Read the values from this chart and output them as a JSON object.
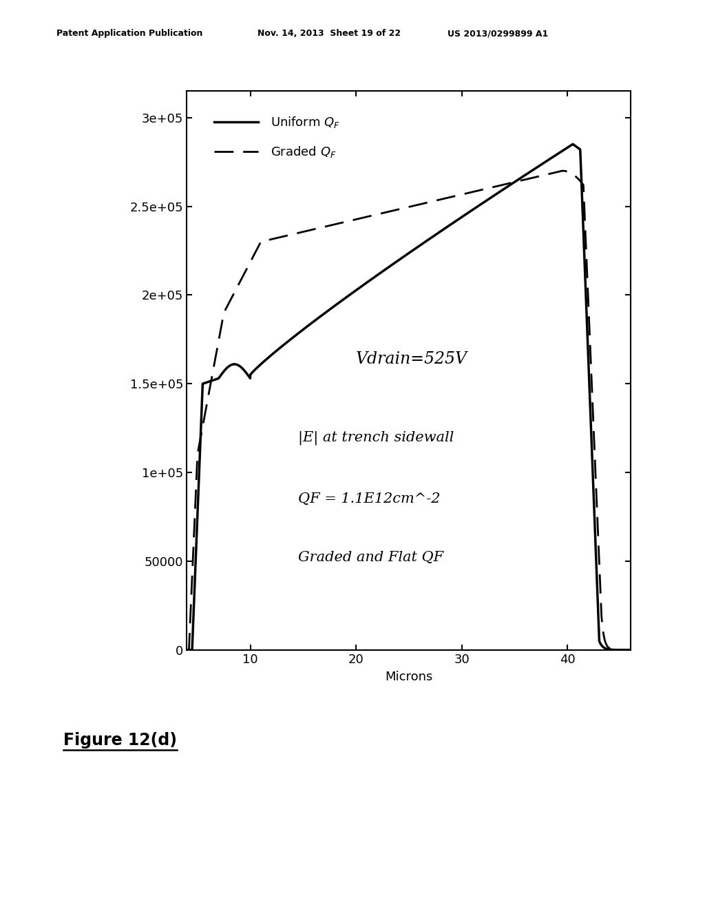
{
  "xlim": [
    4,
    46
  ],
  "ylim": [
    0,
    315000
  ],
  "xlabel": "Microns",
  "yticks": [
    0,
    50000,
    100000,
    150000,
    200000,
    250000,
    300000
  ],
  "ytick_labels": [
    "0",
    "50000",
    "1e+05",
    "1.5e+05",
    "2e+05",
    "2.5e+05",
    "3e+05"
  ],
  "xticks": [
    10,
    20,
    30,
    40
  ],
  "annotation_vdrain": "Vdrain=525V",
  "annotation_e": "|E| at trench sidewall",
  "annotation_qf": "QF = 1.1E12cm^-2",
  "annotation_graded": "Graded and Flat QF",
  "header_left": "Patent Application Publication",
  "header_mid": "Nov. 14, 2013  Sheet 19 of 22",
  "header_right": "US 2013/0299899 A1",
  "figure_label": "Figure 12(d)",
  "bg_color": "#ffffff",
  "line_color": "#000000",
  "fig_width": 10.24,
  "fig_height": 13.2
}
